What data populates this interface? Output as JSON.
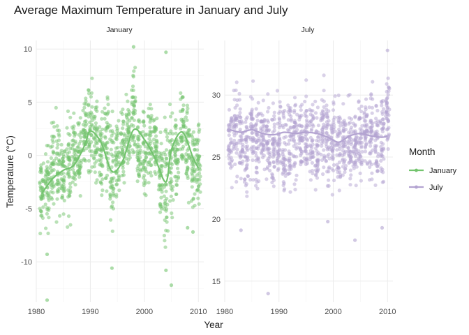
{
  "chart_data": {
    "type": "scatter",
    "title": "Average Maximum Temperature in January and July",
    "xlabel": "Year",
    "ylabel": "Temperature (°C)",
    "grid": true,
    "legend_title": "Month",
    "legend_position": "right",
    "series_colors": {
      "January": "#73c46e",
      "July": "#b3a3d1"
    },
    "x_ticks": [
      1980,
      1990,
      2000,
      2010
    ],
    "xlim": [
      1980,
      2011
    ],
    "panels": [
      {
        "name": "January",
        "ylim": [
          -13.8,
          10.8
        ],
        "y_ticks": [
          -10,
          -5,
          0,
          5,
          10
        ],
        "year_ranges": [
          [
            1981,
            -8.5,
            1.5
          ],
          [
            1982,
            -9.3,
            3.0
          ],
          [
            1983,
            -6.5,
            5.5
          ],
          [
            1984,
            -8.0,
            5.0
          ],
          [
            1985,
            -6.0,
            3.0
          ],
          [
            1986,
            -8.2,
            5.8
          ],
          [
            1987,
            -4.0,
            4.5
          ],
          [
            1988,
            -4.5,
            4.5
          ],
          [
            1989,
            -3.0,
            7.0
          ],
          [
            1990,
            -3.5,
            9.2
          ],
          [
            1991,
            -5.0,
            7.5
          ],
          [
            1992,
            -5.5,
            6.0
          ],
          [
            1993,
            -4.5,
            7.5
          ],
          [
            1994,
            -10.5,
            6.5
          ],
          [
            1995,
            -7.5,
            5.0
          ],
          [
            1996,
            -4.5,
            5.5
          ],
          [
            1997,
            -3.0,
            6.5
          ],
          [
            1998,
            -2.5,
            10.2
          ],
          [
            1999,
            -4.0,
            5.0
          ],
          [
            2000,
            -6.0,
            6.0
          ],
          [
            2001,
            -4.0,
            6.5
          ],
          [
            2002,
            -3.5,
            5.5
          ],
          [
            2003,
            -7.0,
            4.0
          ],
          [
            2004,
            -10.0,
            5.0
          ],
          [
            2005,
            -8.0,
            6.0
          ],
          [
            2006,
            -5.5,
            5.5
          ],
          [
            2007,
            -3.5,
            9.0
          ],
          [
            2008,
            -6.5,
            7.5
          ],
          [
            2009,
            -7.5,
            5.5
          ],
          [
            2010,
            -7.0,
            5.0
          ]
        ],
        "outliers": [
          [
            1982,
            -13.6
          ],
          [
            2005,
            -12.2
          ],
          [
            2004,
            9.7
          ],
          [
            1994,
            -10.6
          ],
          [
            2004,
            -10.8
          ],
          [
            2008,
            -6.8
          ],
          [
            2009,
            -7.2
          ],
          [
            1982,
            -9.3
          ],
          [
            1998,
            10.2
          ]
        ],
        "smooth": [
          [
            1981,
            -3.6
          ],
          [
            1983,
            -2.2
          ],
          [
            1985,
            -1.4
          ],
          [
            1987,
            -0.9
          ],
          [
            1989,
            1.0
          ],
          [
            1990,
            2.3
          ],
          [
            1992,
            1.2
          ],
          [
            1994,
            -1.5
          ],
          [
            1996,
            -0.5
          ],
          [
            1998,
            2.4
          ],
          [
            2000,
            1.5
          ],
          [
            2002,
            -0.3
          ],
          [
            2004,
            -2.5
          ],
          [
            2005,
            0.5
          ],
          [
            2007,
            2.2
          ],
          [
            2009,
            -0.2
          ],
          [
            2010,
            -1.2
          ]
        ]
      },
      {
        "name": "July",
        "ylim": [
          13.3,
          34.4
        ],
        "y_ticks": [
          15,
          20,
          25,
          30
        ],
        "year_ranges": [
          [
            1981,
            21.8,
            31.0
          ],
          [
            1982,
            22.5,
            32.0
          ],
          [
            1983,
            21.5,
            32.2
          ],
          [
            1984,
            20.8,
            30.0
          ],
          [
            1985,
            22.0,
            31.5
          ],
          [
            1986,
            21.5,
            30.5
          ],
          [
            1987,
            22.0,
            31.0
          ],
          [
            1988,
            21.0,
            31.5
          ],
          [
            1989,
            21.0,
            30.5
          ],
          [
            1990,
            22.5,
            31.0
          ],
          [
            1991,
            20.0,
            31.5
          ],
          [
            1992,
            20.5,
            32.0
          ],
          [
            1993,
            22.0,
            31.0
          ],
          [
            1994,
            21.5,
            31.5
          ],
          [
            1995,
            21.0,
            31.5
          ],
          [
            1996,
            20.8,
            31.0
          ],
          [
            1997,
            21.0,
            31.0
          ],
          [
            1998,
            22.0,
            32.5
          ],
          [
            1999,
            19.8,
            32.0
          ],
          [
            2000,
            21.5,
            31.0
          ],
          [
            2001,
            21.5,
            31.0
          ],
          [
            2002,
            22.0,
            30.0
          ],
          [
            2003,
            21.5,
            31.0
          ],
          [
            2004,
            21.0,
            30.5
          ],
          [
            2005,
            22.5,
            31.0
          ],
          [
            2006,
            22.5,
            31.0
          ],
          [
            2007,
            21.5,
            32.0
          ],
          [
            2008,
            20.5,
            32.0
          ],
          [
            2009,
            20.5,
            32.5
          ],
          [
            2010,
            24.5,
            33.5
          ]
        ],
        "outliers": [
          [
            1983,
            19.1
          ],
          [
            1988,
            14.0
          ],
          [
            2004,
            18.3
          ],
          [
            2009,
            19.3
          ],
          [
            2010,
            33.6
          ],
          [
            1999,
            19.8
          ]
        ],
        "smooth": [
          [
            1981,
            27.2
          ],
          [
            1983,
            27.0
          ],
          [
            1985,
            27.2
          ],
          [
            1987,
            26.9
          ],
          [
            1989,
            26.8
          ],
          [
            1991,
            27.0
          ],
          [
            1993,
            26.9
          ],
          [
            1995,
            27.0
          ],
          [
            1997,
            26.9
          ],
          [
            1999,
            26.6
          ],
          [
            2001,
            26.2
          ],
          [
            2003,
            26.7
          ],
          [
            2005,
            26.9
          ],
          [
            2007,
            26.7
          ],
          [
            2009,
            26.6
          ],
          [
            2010,
            26.7
          ]
        ]
      }
    ]
  }
}
